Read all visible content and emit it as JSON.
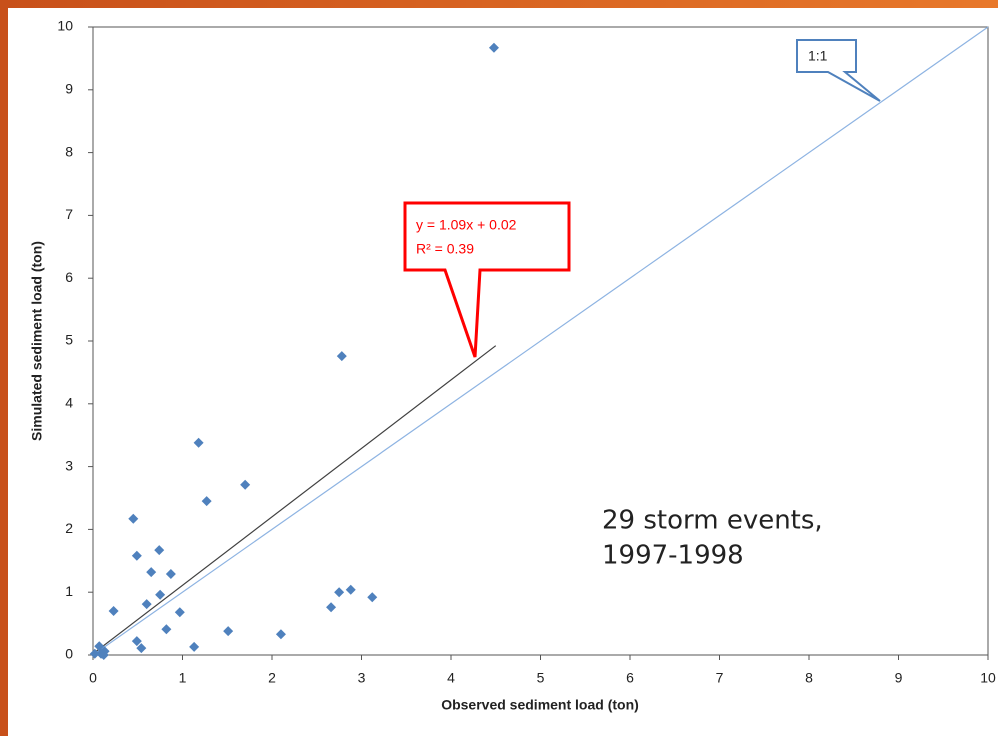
{
  "chart_data": {
    "type": "scatter",
    "x_label": "Observed sediment load (ton)",
    "y_label": "Simulated sediment load (ton)",
    "xlim": [
      0,
      10
    ],
    "ylim": [
      0,
      10
    ],
    "xticks": [
      0,
      1,
      2,
      3,
      4,
      5,
      6,
      7,
      8,
      9,
      10
    ],
    "yticks": [
      0,
      1,
      2,
      3,
      4,
      5,
      6,
      7,
      8,
      9,
      10
    ],
    "color": "#4f81bd",
    "x": [
      4.48,
      2.78,
      1.18,
      1.7,
      1.27,
      0.45,
      0.74,
      0.49,
      0.65,
      0.87,
      0.75,
      0.6,
      0.23,
      0.97,
      0.82,
      0.49,
      0.54,
      1.13,
      1.51,
      2.1,
      2.66,
      2.75,
      2.88,
      3.12,
      0.07,
      0.02,
      0.09,
      0.13,
      0.12
    ],
    "y": [
      9.67,
      4.76,
      3.38,
      2.71,
      2.45,
      2.17,
      1.67,
      1.58,
      1.32,
      1.29,
      0.96,
      0.81,
      0.7,
      0.68,
      0.41,
      0.22,
      0.11,
      0.13,
      0.38,
      0.33,
      0.76,
      1.0,
      1.04,
      0.92,
      0.14,
      0.02,
      0.02,
      0.06,
      0.0
    ],
    "trendline": {
      "color": "#404040",
      "x": [
        0,
        4.5
      ],
      "y": [
        0.02,
        4.925
      ]
    },
    "reference_line": {
      "color": "#8db3e2",
      "x": [
        0,
        10
      ],
      "y": [
        0,
        10
      ]
    },
    "annotations": {
      "equation": "y = 1.09x + 0.02",
      "r_squared": "R² = 0.39",
      "one_to_one": "1:1",
      "note_line1": "29 storm events,",
      "note_line2": "1997-1998"
    }
  }
}
